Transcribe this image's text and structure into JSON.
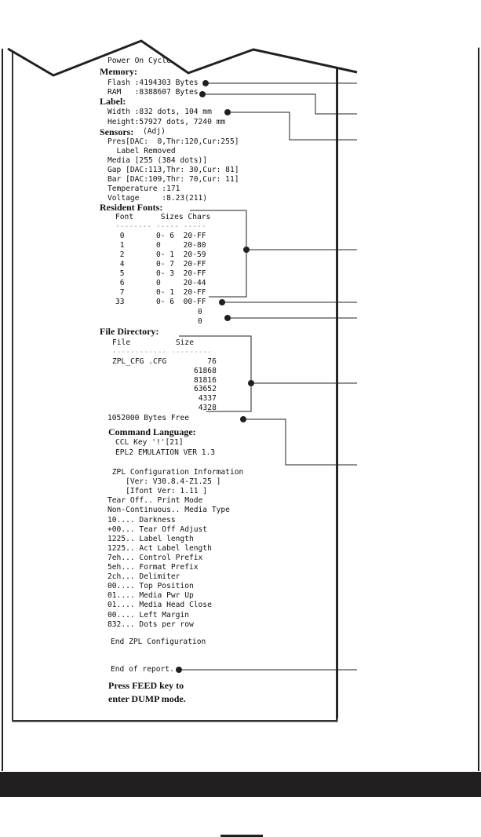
{
  "printout": {
    "power_on": "Power On Cycles",
    "memory_header": "Memory:",
    "flash": "Flash :4194303 Bytes",
    "ram": "RAM   :8388607 Bytes",
    "label_header": "Label:",
    "width": "Width :832 dots, 104 mm",
    "height": "Height:57927 dots, 7240 mm",
    "sensors_header": "Sensors:",
    "sensors_adj": "(Adj)",
    "sensors": [
      "Pres[DAC:  0,Thr:120,Cur:255]",
      "  Label Removed",
      "Media [255 (384 dots)]",
      "Gap [DAC:113,Thr: 30,Cur: 81]",
      "Bar [DAC:109,Thr: 70,Cur: 11]",
      "Temperature :171",
      "Voltage     :8.23(211)"
    ],
    "fonts_header": "Resident Fonts:",
    "fonts_columns": "Font      Sizes Chars",
    "fonts_rule": "-------- ----- -----",
    "fonts_rows": [
      " 0       0- 6  20-FF",
      " 1       0     20-80",
      " 2       0- 1  20-59",
      " 4       0- 7  20-FF",
      " 5       0- 3  20-FF",
      " 6       0     20-44",
      " 7       0- 1  20-FF",
      "33       0- 6  00-FF"
    ],
    "fonts_extra": [
      "0",
      "0"
    ],
    "files_header": "File Directory:",
    "files_columns": "File          Size",
    "files_rule": "------------ ---------",
    "files_rows": [
      "ZPL_CFG .CFG         76",
      "                  61868",
      "                  81816",
      "                  63652",
      "                   4337",
      "                   4328"
    ],
    "bytes_free": "1052000 Bytes Free",
    "command_header": "Command Language:",
    "command_lines": [
      "CCL Key '!'[21]",
      "EPL2 EMULATION VER 1.3"
    ],
    "zpl_lines": [
      " ZPL Configuration Information",
      "    [Ver: V30.8.4-Z1.25 ]",
      "    [Ifont Ver: 1.11 ]",
      "Tear Off.. Print Mode",
      "Non-Continuous.. Media Type",
      "10.... Darkness",
      "+00... Tear Off Adjust",
      "1225.. Label length",
      "1225.. Act Label length",
      "7eh... Control Prefix",
      "5eh... Format Prefix",
      "2ch... Delimiter",
      "00.... Top Position",
      "01.... Media Pwr Up",
      "01.... Media Head Close",
      "00.... Left Margin",
      "832... Dots per row"
    ],
    "zpl_end": "End ZPL Configuration",
    "end_report": "End of report.",
    "dump_1": "Press FEED key to",
    "dump_2": "enter DUMP mode."
  }
}
